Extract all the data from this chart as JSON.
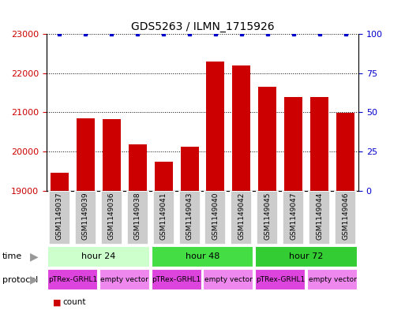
{
  "title": "GDS5263 / ILMN_1715926",
  "samples": [
    "GSM1149037",
    "GSM1149039",
    "GSM1149036",
    "GSM1149038",
    "GSM1149041",
    "GSM1149043",
    "GSM1149040",
    "GSM1149042",
    "GSM1149045",
    "GSM1149047",
    "GSM1149044",
    "GSM1149046"
  ],
  "counts": [
    19450,
    20850,
    20820,
    20180,
    19730,
    20120,
    22300,
    22200,
    21650,
    21400,
    21400,
    20980
  ],
  "percentiles": [
    100,
    100,
    100,
    100,
    100,
    100,
    100,
    100,
    100,
    100,
    100,
    100
  ],
  "bar_color": "#cc0000",
  "dot_color": "#0000cc",
  "ylim_left": [
    19000,
    23000
  ],
  "ylim_right": [
    0,
    100
  ],
  "yticks_left": [
    19000,
    20000,
    21000,
    22000,
    23000
  ],
  "yticks_right": [
    0,
    25,
    50,
    75,
    100
  ],
  "time_groups": [
    {
      "label": "hour 24",
      "start": 0,
      "end": 3,
      "color": "#ccffcc"
    },
    {
      "label": "hour 48",
      "start": 4,
      "end": 7,
      "color": "#44dd44"
    },
    {
      "label": "hour 72",
      "start": 8,
      "end": 11,
      "color": "#33cc33"
    }
  ],
  "protocol_groups": [
    {
      "label": "pTRex-GRHL1",
      "start": 0,
      "end": 1,
      "color": "#dd44dd"
    },
    {
      "label": "empty vector",
      "start": 2,
      "end": 3,
      "color": "#ee88ee"
    },
    {
      "label": "pTRex-GRHL1",
      "start": 4,
      "end": 5,
      "color": "#dd44dd"
    },
    {
      "label": "empty vector",
      "start": 6,
      "end": 7,
      "color": "#ee88ee"
    },
    {
      "label": "pTRex-GRHL1",
      "start": 8,
      "end": 9,
      "color": "#dd44dd"
    },
    {
      "label": "empty vector",
      "start": 10,
      "end": 11,
      "color": "#ee88ee"
    }
  ],
  "legend_count_color": "#cc0000",
  "legend_dot_color": "#0000cc",
  "sample_box_color": "#cccccc",
  "tick_label_color_left": "#cc0000",
  "tick_label_color_right": "#0000cc",
  "time_arrow_color": "#999999",
  "protocol_arrow_color": "#999999"
}
